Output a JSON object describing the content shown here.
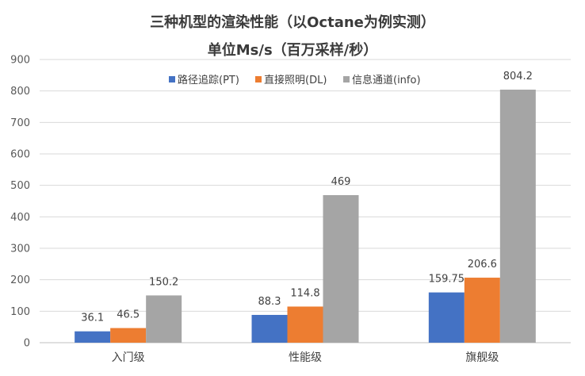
{
  "chart_data": {
    "type": "bar",
    "title": "三种机型的渲染性能（以Octane为例实测）",
    "subtitle": "单位Ms/s（百万采样/秒）",
    "categories": [
      "入门级",
      "性能级",
      "旗舰级"
    ],
    "series": [
      {
        "name": "路径追踪(PT)",
        "values": [
          36.1,
          88.3,
          159.75
        ],
        "labels": [
          "36.1",
          "88.3",
          "159.75"
        ],
        "color": "#4472C4"
      },
      {
        "name": "直接照明(DL)",
        "values": [
          46.5,
          114.8,
          206.6
        ],
        "labels": [
          "46.5",
          "114.8",
          "206.6"
        ],
        "color": "#ED7D31"
      },
      {
        "name": "信息通道(info)",
        "values": [
          150.2,
          469,
          804.2
        ],
        "labels": [
          "150.2",
          "469",
          "804.2"
        ],
        "color": "#A5A5A5"
      }
    ],
    "ylim": [
      0,
      900
    ],
    "yticks": [
      0,
      100,
      200,
      300,
      400,
      500,
      600,
      700,
      800,
      900
    ],
    "grid": true,
    "legend": "top-center"
  }
}
